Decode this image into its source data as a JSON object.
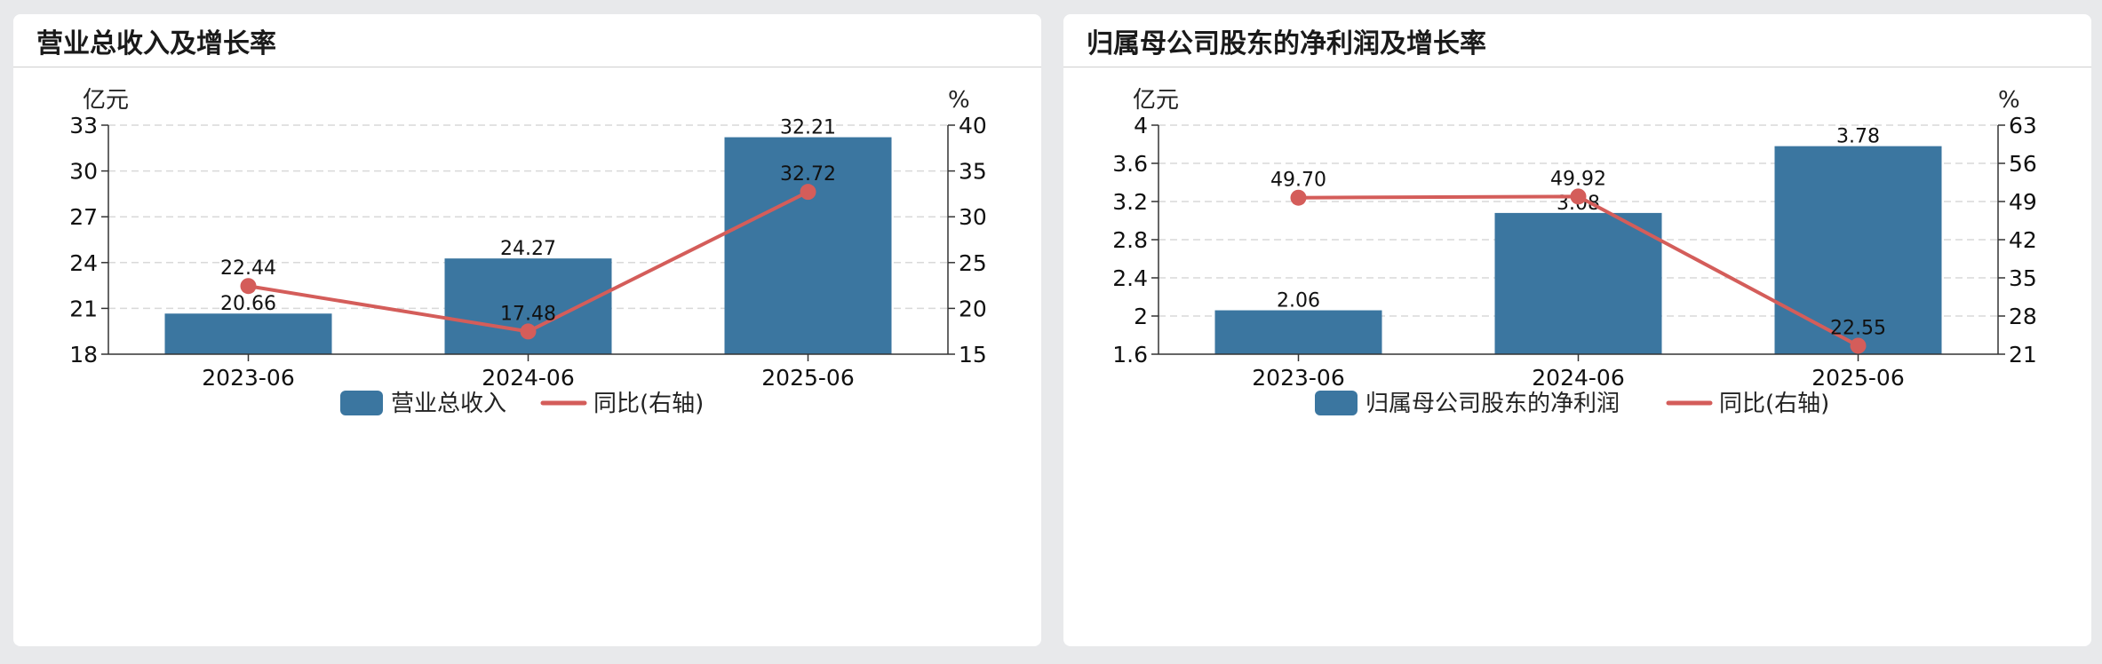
{
  "panels": [
    {
      "title": "营业总收入及增长率"
    },
    {
      "title": "归属母公司股东的净利润及增长率"
    }
  ],
  "colors": {
    "bar": "#3b76a0",
    "line": "#d45d5a",
    "grid": "#d9d9d9",
    "axis": "#333333"
  },
  "chart_data": [
    {
      "type": "bar",
      "title": "营业总收入及增长率",
      "categories": [
        "2023-06",
        "2024-06",
        "2025-06"
      ],
      "ylabel_left": "亿元",
      "ylabel_right": "%",
      "ylim_left": [
        18,
        33
      ],
      "yticks_left": [
        "18",
        "21",
        "24",
        "27",
        "30",
        "33"
      ],
      "ylim_right": [
        15,
        40
      ],
      "yticks_right": [
        "15",
        "20",
        "25",
        "30",
        "35",
        "40"
      ],
      "grid": true,
      "legend_position": "bottom",
      "series": [
        {
          "name": "营业总收入",
          "type": "bar",
          "axis": "left",
          "values": [
            20.66,
            24.27,
            32.21
          ],
          "labels": [
            "20.66",
            "24.27",
            "32.21"
          ]
        },
        {
          "name": "同比(右轴)",
          "type": "line",
          "axis": "right",
          "values": [
            22.44,
            17.48,
            32.72
          ],
          "labels": [
            "22.44",
            "17.48",
            "32.72"
          ]
        }
      ]
    },
    {
      "type": "bar",
      "title": "归属母公司股东的净利润及增长率",
      "categories": [
        "2023-06",
        "2024-06",
        "2025-06"
      ],
      "ylabel_left": "亿元",
      "ylabel_right": "%",
      "ylim_left": [
        1.6,
        4
      ],
      "yticks_left": [
        "1.6",
        "2",
        "2.4",
        "2.8",
        "3.2",
        "3.6",
        "4"
      ],
      "ylim_right": [
        21,
        63
      ],
      "yticks_right": [
        "21",
        "28",
        "35",
        "42",
        "49",
        "56",
        "63"
      ],
      "grid": true,
      "legend_position": "bottom",
      "series": [
        {
          "name": "归属母公司股东的净利润",
          "type": "bar",
          "axis": "left",
          "values": [
            2.06,
            3.08,
            3.78
          ],
          "labels": [
            "2.06",
            "3.08",
            "3.78"
          ]
        },
        {
          "name": "同比(右轴)",
          "type": "line",
          "axis": "right",
          "values": [
            49.7,
            49.92,
            22.55
          ],
          "labels": [
            "49.70",
            "49.92",
            "22.55"
          ]
        }
      ]
    }
  ]
}
